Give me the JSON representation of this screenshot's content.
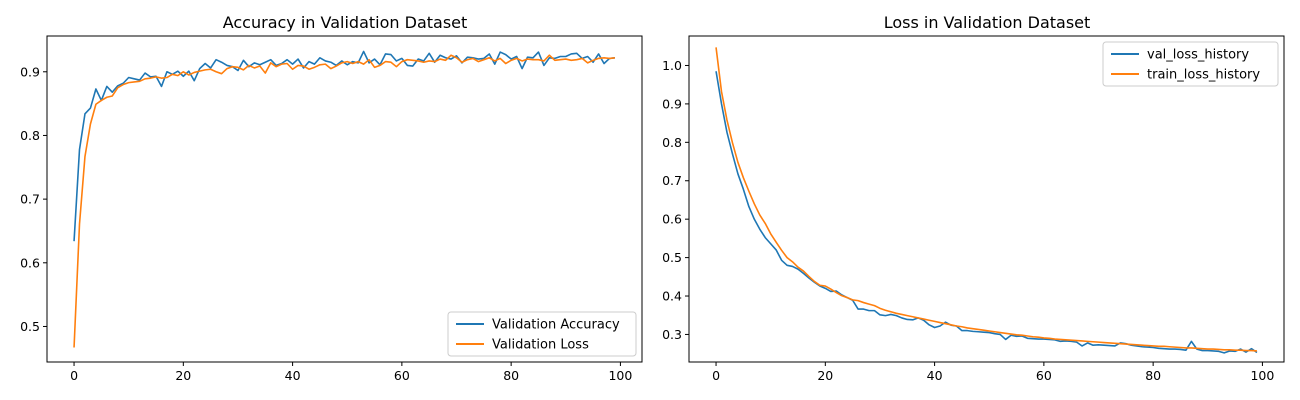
{
  "colors": {
    "series1": "#1f77b4",
    "series2": "#ff7f0e",
    "axis": "#000000",
    "legend_border": "#cccccc"
  },
  "chart_data": [
    {
      "type": "line",
      "title": "Accuracy in Validation Dataset",
      "xlabel": "",
      "ylabel": "",
      "xlim": [
        -4.95,
        103.95
      ],
      "ylim": [
        0.4442,
        0.9562
      ],
      "xticks": [
        0,
        20,
        40,
        60,
        80,
        100
      ],
      "yticks": [
        0.5,
        0.6,
        0.7,
        0.8,
        0.9
      ],
      "xtick_labels": [
        "0",
        "20",
        "40",
        "60",
        "80",
        "100"
      ],
      "ytick_labels": [
        "0.5",
        "0.6",
        "0.7",
        "0.8",
        "0.9"
      ],
      "legend": {
        "position": "lower-right"
      },
      "series": [
        {
          "name": "Validation Accuracy",
          "color": "#1f77b4",
          "values": [
            0.634,
            0.778,
            0.834,
            0.843,
            0.873,
            0.855,
            0.877,
            0.868,
            0.878,
            0.882,
            0.891,
            0.889,
            0.887,
            0.898,
            0.892,
            0.893,
            0.877,
            0.9,
            0.896,
            0.901,
            0.893,
            0.901,
            0.886,
            0.905,
            0.913,
            0.906,
            0.919,
            0.915,
            0.91,
            0.908,
            0.902,
            0.918,
            0.908,
            0.914,
            0.911,
            0.915,
            0.919,
            0.91,
            0.913,
            0.919,
            0.912,
            0.92,
            0.906,
            0.916,
            0.912,
            0.922,
            0.917,
            0.915,
            0.91,
            0.917,
            0.911,
            0.916,
            0.914,
            0.932,
            0.914,
            0.92,
            0.911,
            0.928,
            0.927,
            0.917,
            0.921,
            0.91,
            0.909,
            0.92,
            0.917,
            0.929,
            0.915,
            0.926,
            0.922,
            0.92,
            0.925,
            0.914,
            0.923,
            0.922,
            0.92,
            0.921,
            0.928,
            0.912,
            0.931,
            0.927,
            0.92,
            0.924,
            0.905,
            0.923,
            0.922,
            0.931,
            0.91,
            0.922,
            0.921,
            0.924,
            0.924,
            0.928,
            0.929,
            0.921,
            0.924,
            0.915,
            0.928,
            0.913,
            0.921,
            0.922
          ]
        },
        {
          "name": "Validation Loss",
          "color": "#ff7f0e",
          "values": [
            0.467,
            0.661,
            0.767,
            0.818,
            0.849,
            0.855,
            0.86,
            0.862,
            0.875,
            0.88,
            0.883,
            0.884,
            0.885,
            0.889,
            0.89,
            0.892,
            0.89,
            0.891,
            0.896,
            0.894,
            0.9,
            0.895,
            0.899,
            0.901,
            0.903,
            0.904,
            0.9,
            0.897,
            0.905,
            0.908,
            0.907,
            0.903,
            0.91,
            0.906,
            0.909,
            0.898,
            0.914,
            0.908,
            0.912,
            0.913,
            0.904,
            0.91,
            0.909,
            0.904,
            0.907,
            0.911,
            0.912,
            0.905,
            0.909,
            0.914,
            0.916,
            0.913,
            0.916,
            0.912,
            0.919,
            0.907,
            0.91,
            0.916,
            0.915,
            0.908,
            0.916,
            0.919,
            0.918,
            0.917,
            0.915,
            0.917,
            0.916,
            0.92,
            0.918,
            0.926,
            0.922,
            0.915,
            0.919,
            0.921,
            0.916,
            0.919,
            0.922,
            0.917,
            0.921,
            0.913,
            0.918,
            0.921,
            0.917,
            0.92,
            0.919,
            0.919,
            0.917,
            0.926,
            0.918,
            0.919,
            0.92,
            0.918,
            0.919,
            0.921,
            0.914,
            0.918,
            0.921,
            0.922,
            0.921,
            0.922
          ]
        }
      ]
    },
    {
      "type": "line",
      "title": "Loss in Validation Dataset",
      "xlabel": "",
      "ylabel": "",
      "xlim": [
        -4.95,
        103.95
      ],
      "ylim": [
        0.2283,
        1.0767
      ],
      "xticks": [
        0,
        20,
        40,
        60,
        80,
        100
      ],
      "yticks": [
        0.3,
        0.4,
        0.5,
        0.6,
        0.7,
        0.8,
        0.9,
        1.0
      ],
      "xtick_labels": [
        "0",
        "20",
        "40",
        "60",
        "80",
        "100"
      ],
      "ytick_labels": [
        "0.3",
        "0.4",
        "0.5",
        "0.6",
        "0.7",
        "0.8",
        "0.9",
        "1.0"
      ],
      "legend": {
        "position": "upper-right"
      },
      "series": [
        {
          "name": "val_loss_history",
          "color": "#1f77b4",
          "values": [
            0.985,
            0.9,
            0.826,
            0.77,
            0.718,
            0.678,
            0.633,
            0.6,
            0.574,
            0.552,
            0.536,
            0.52,
            0.493,
            0.48,
            0.477,
            0.47,
            0.459,
            0.447,
            0.436,
            0.426,
            0.42,
            0.412,
            0.413,
            0.403,
            0.396,
            0.389,
            0.366,
            0.366,
            0.362,
            0.362,
            0.351,
            0.349,
            0.352,
            0.349,
            0.343,
            0.339,
            0.338,
            0.343,
            0.337,
            0.325,
            0.318,
            0.322,
            0.332,
            0.324,
            0.322,
            0.31,
            0.31,
            0.308,
            0.307,
            0.306,
            0.305,
            0.302,
            0.3,
            0.287,
            0.298,
            0.295,
            0.296,
            0.29,
            0.289,
            0.288,
            0.288,
            0.287,
            0.286,
            0.282,
            0.283,
            0.282,
            0.28,
            0.27,
            0.278,
            0.272,
            0.273,
            0.272,
            0.271,
            0.27,
            0.278,
            0.276,
            0.272,
            0.27,
            0.268,
            0.267,
            0.266,
            0.264,
            0.263,
            0.262,
            0.262,
            0.261,
            0.259,
            0.282,
            0.262,
            0.258,
            0.258,
            0.257,
            0.256,
            0.252,
            0.257,
            0.256,
            0.262,
            0.254,
            0.263,
            0.253
          ]
        },
        {
          "name": "train_loss_history",
          "color": "#ff7f0e",
          "values": [
            1.047,
            0.932,
            0.858,
            0.799,
            0.748,
            0.708,
            0.673,
            0.64,
            0.611,
            0.589,
            0.562,
            0.54,
            0.519,
            0.5,
            0.489,
            0.475,
            0.465,
            0.451,
            0.438,
            0.428,
            0.426,
            0.418,
            0.409,
            0.401,
            0.396,
            0.39,
            0.388,
            0.383,
            0.379,
            0.375,
            0.368,
            0.363,
            0.359,
            0.355,
            0.352,
            0.349,
            0.346,
            0.343,
            0.34,
            0.337,
            0.334,
            0.331,
            0.328,
            0.325,
            0.322,
            0.32,
            0.317,
            0.315,
            0.313,
            0.311,
            0.309,
            0.307,
            0.305,
            0.303,
            0.301,
            0.299,
            0.298,
            0.296,
            0.294,
            0.293,
            0.291,
            0.29,
            0.288,
            0.287,
            0.286,
            0.285,
            0.284,
            0.283,
            0.282,
            0.281,
            0.28,
            0.279,
            0.278,
            0.277,
            0.276,
            0.275,
            0.274,
            0.273,
            0.272,
            0.271,
            0.27,
            0.269,
            0.269,
            0.268,
            0.267,
            0.266,
            0.265,
            0.265,
            0.264,
            0.263,
            0.262,
            0.262,
            0.261,
            0.26,
            0.26,
            0.259,
            0.259,
            0.258,
            0.258,
            0.257
          ]
        }
      ]
    }
  ]
}
